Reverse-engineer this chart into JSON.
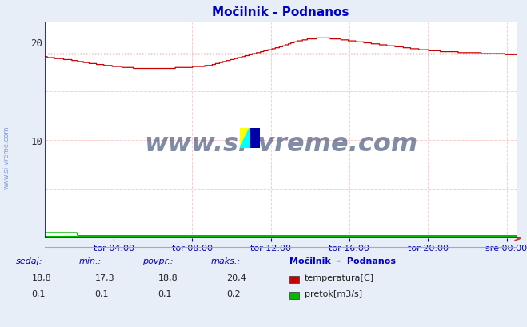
{
  "title": "Močilnik - Podnanos",
  "bg_color": "#e8eef8",
  "plot_bg_color": "#ffffff",
  "grid_color_h": "#ffcccc",
  "grid_color_v": "#ffcccc",
  "axis_color": "#0000cc",
  "title_color": "#0000cc",
  "tick_labels": [
    "tor 04:00",
    "tor 08:00",
    "tor 12:00",
    "tor 16:00",
    "tor 20:00",
    "sre 00:00"
  ],
  "x_ticks_norm": [
    0.1458,
    0.3125,
    0.4792,
    0.6458,
    0.8125,
    0.9792
  ],
  "ylim": [
    0,
    22
  ],
  "yticks": [
    10,
    20
  ],
  "temp_color": "#cc0000",
  "pretok_color": "#00bb00",
  "avg_value": 18.8,
  "watermark": "www.si-vreme.com",
  "watermark_color": "#1a3060",
  "side_watermark_color": "#6688cc",
  "station_label": "Močilnik  -  Podnanos",
  "label_temp": "temperatura[C]",
  "label_pretok": "pretok[m3/s]",
  "footer_labels": [
    "sedaj:",
    "min.:",
    "povpr.:",
    "maks.:"
  ],
  "footer_color": "#0000cc",
  "footer_values_temp": [
    "18,8",
    "17,3",
    "18,8",
    "20,4"
  ],
  "footer_values_pretok": [
    "0,1",
    "0,1",
    "0,1",
    "0,2"
  ],
  "temp_profile_x": [
    0.0,
    0.01,
    0.05,
    0.1,
    0.15,
    0.2,
    0.25,
    0.3,
    0.35,
    0.38,
    0.42,
    0.46,
    0.5,
    0.53,
    0.56,
    0.59,
    0.62,
    0.65,
    0.7,
    0.75,
    0.8,
    0.85,
    0.9,
    0.95,
    1.0
  ],
  "temp_profile_y": [
    18.5,
    18.4,
    18.2,
    17.8,
    17.5,
    17.3,
    17.3,
    17.4,
    17.6,
    18.0,
    18.5,
    19.0,
    19.5,
    20.0,
    20.3,
    20.4,
    20.3,
    20.1,
    19.8,
    19.5,
    19.2,
    19.0,
    18.9,
    18.8,
    18.7
  ]
}
